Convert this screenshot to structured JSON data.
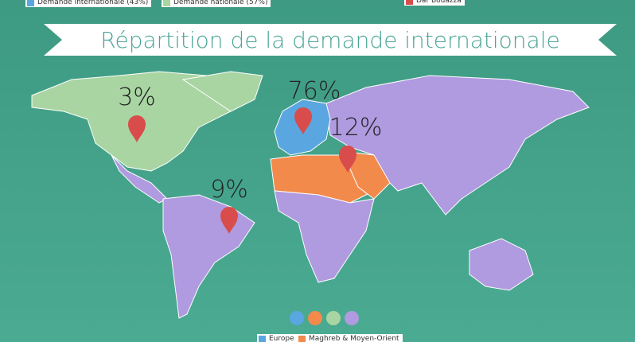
{
  "top_legend": [
    {
      "label": "Demande internationale (43%)",
      "color": "#5aa6e0"
    },
    {
      "label": "Demande nationale (57%)",
      "color": "#a8d5a2"
    },
    {
      "label": "Dar Bouazza",
      "color": "#d94c4c"
    }
  ],
  "title": "Répartition de la demande internationale",
  "markers": [
    {
      "label": "3%"
    },
    {
      "label": "76%"
    },
    {
      "label": "12%"
    },
    {
      "label": "9%"
    }
  ],
  "bottom_legend": [
    {
      "label": "Europe",
      "color": "#5aa6e0"
    },
    {
      "label": "Maghreb & Moyen-Orient",
      "color": "#f28a4c"
    }
  ]
}
